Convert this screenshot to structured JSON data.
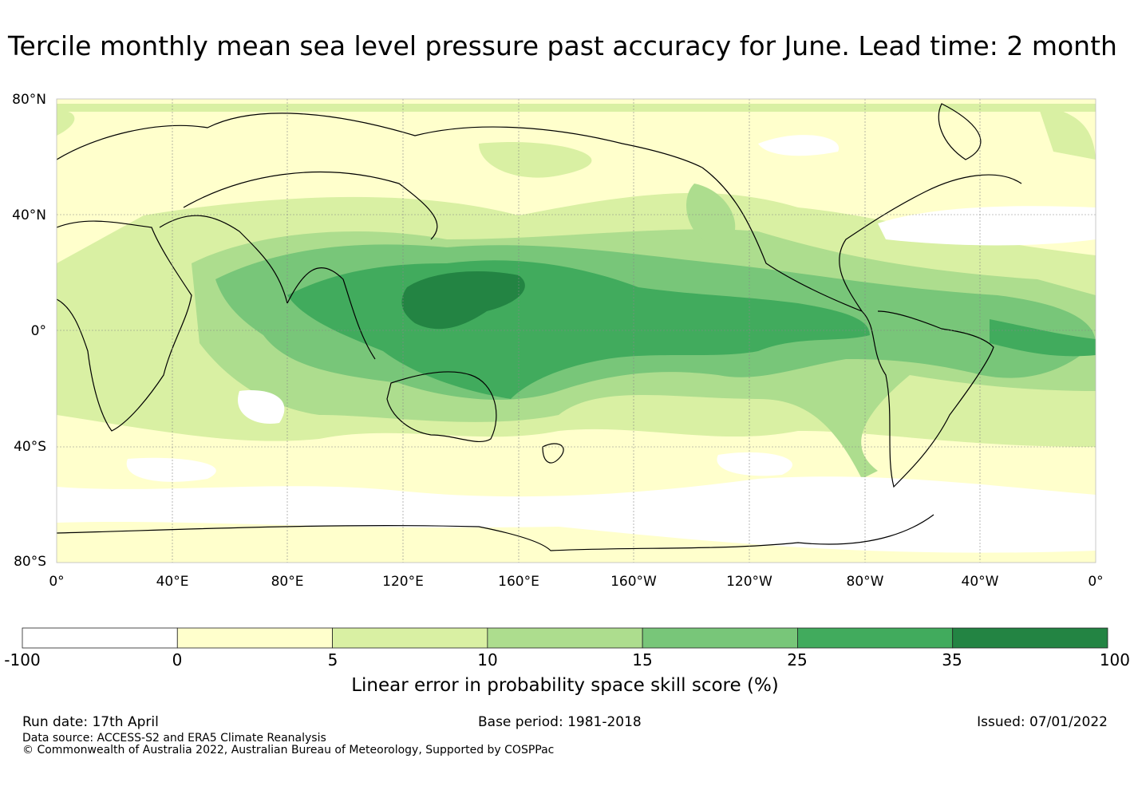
{
  "title": "Tercile monthly mean sea level pressure past accuracy for June. Lead time: 2 month",
  "map": {
    "lat_labels": [
      "80°N",
      "40°N",
      "0°",
      "40°S",
      "80°S"
    ],
    "lon_labels": [
      "0°",
      "40°E",
      "80°E",
      "120°E",
      "160°E",
      "160°W",
      "120°W",
      "80°W",
      "40°W",
      "0°"
    ],
    "lat_values": [
      80,
      40,
      0,
      -40,
      -80
    ],
    "lon_values": [
      0,
      40,
      80,
      120,
      160,
      200,
      240,
      280,
      320,
      360
    ]
  },
  "colorbar": {
    "boundaries": [
      "-100",
      "0",
      "5",
      "10",
      "15",
      "25",
      "35",
      "100"
    ],
    "colors": [
      "#ffffff",
      "#ffffcc",
      "#d9f0a3",
      "#addd8e",
      "#78c679",
      "#41ab5d",
      "#238443"
    ],
    "title": "Linear error in probability space skill score (%)"
  },
  "footer": {
    "run_date": "Run date: 17th April",
    "base_period": "Base period: 1981-2018",
    "issued": "Issued: 07/01/2022",
    "data_source": "Data source: ACCESS-S2 and ERA5 Climate Reanalysis",
    "copyright": "© Commonwealth of Australia 2022, Australian Bureau of Meteorology, Supported by COSPPac"
  }
}
